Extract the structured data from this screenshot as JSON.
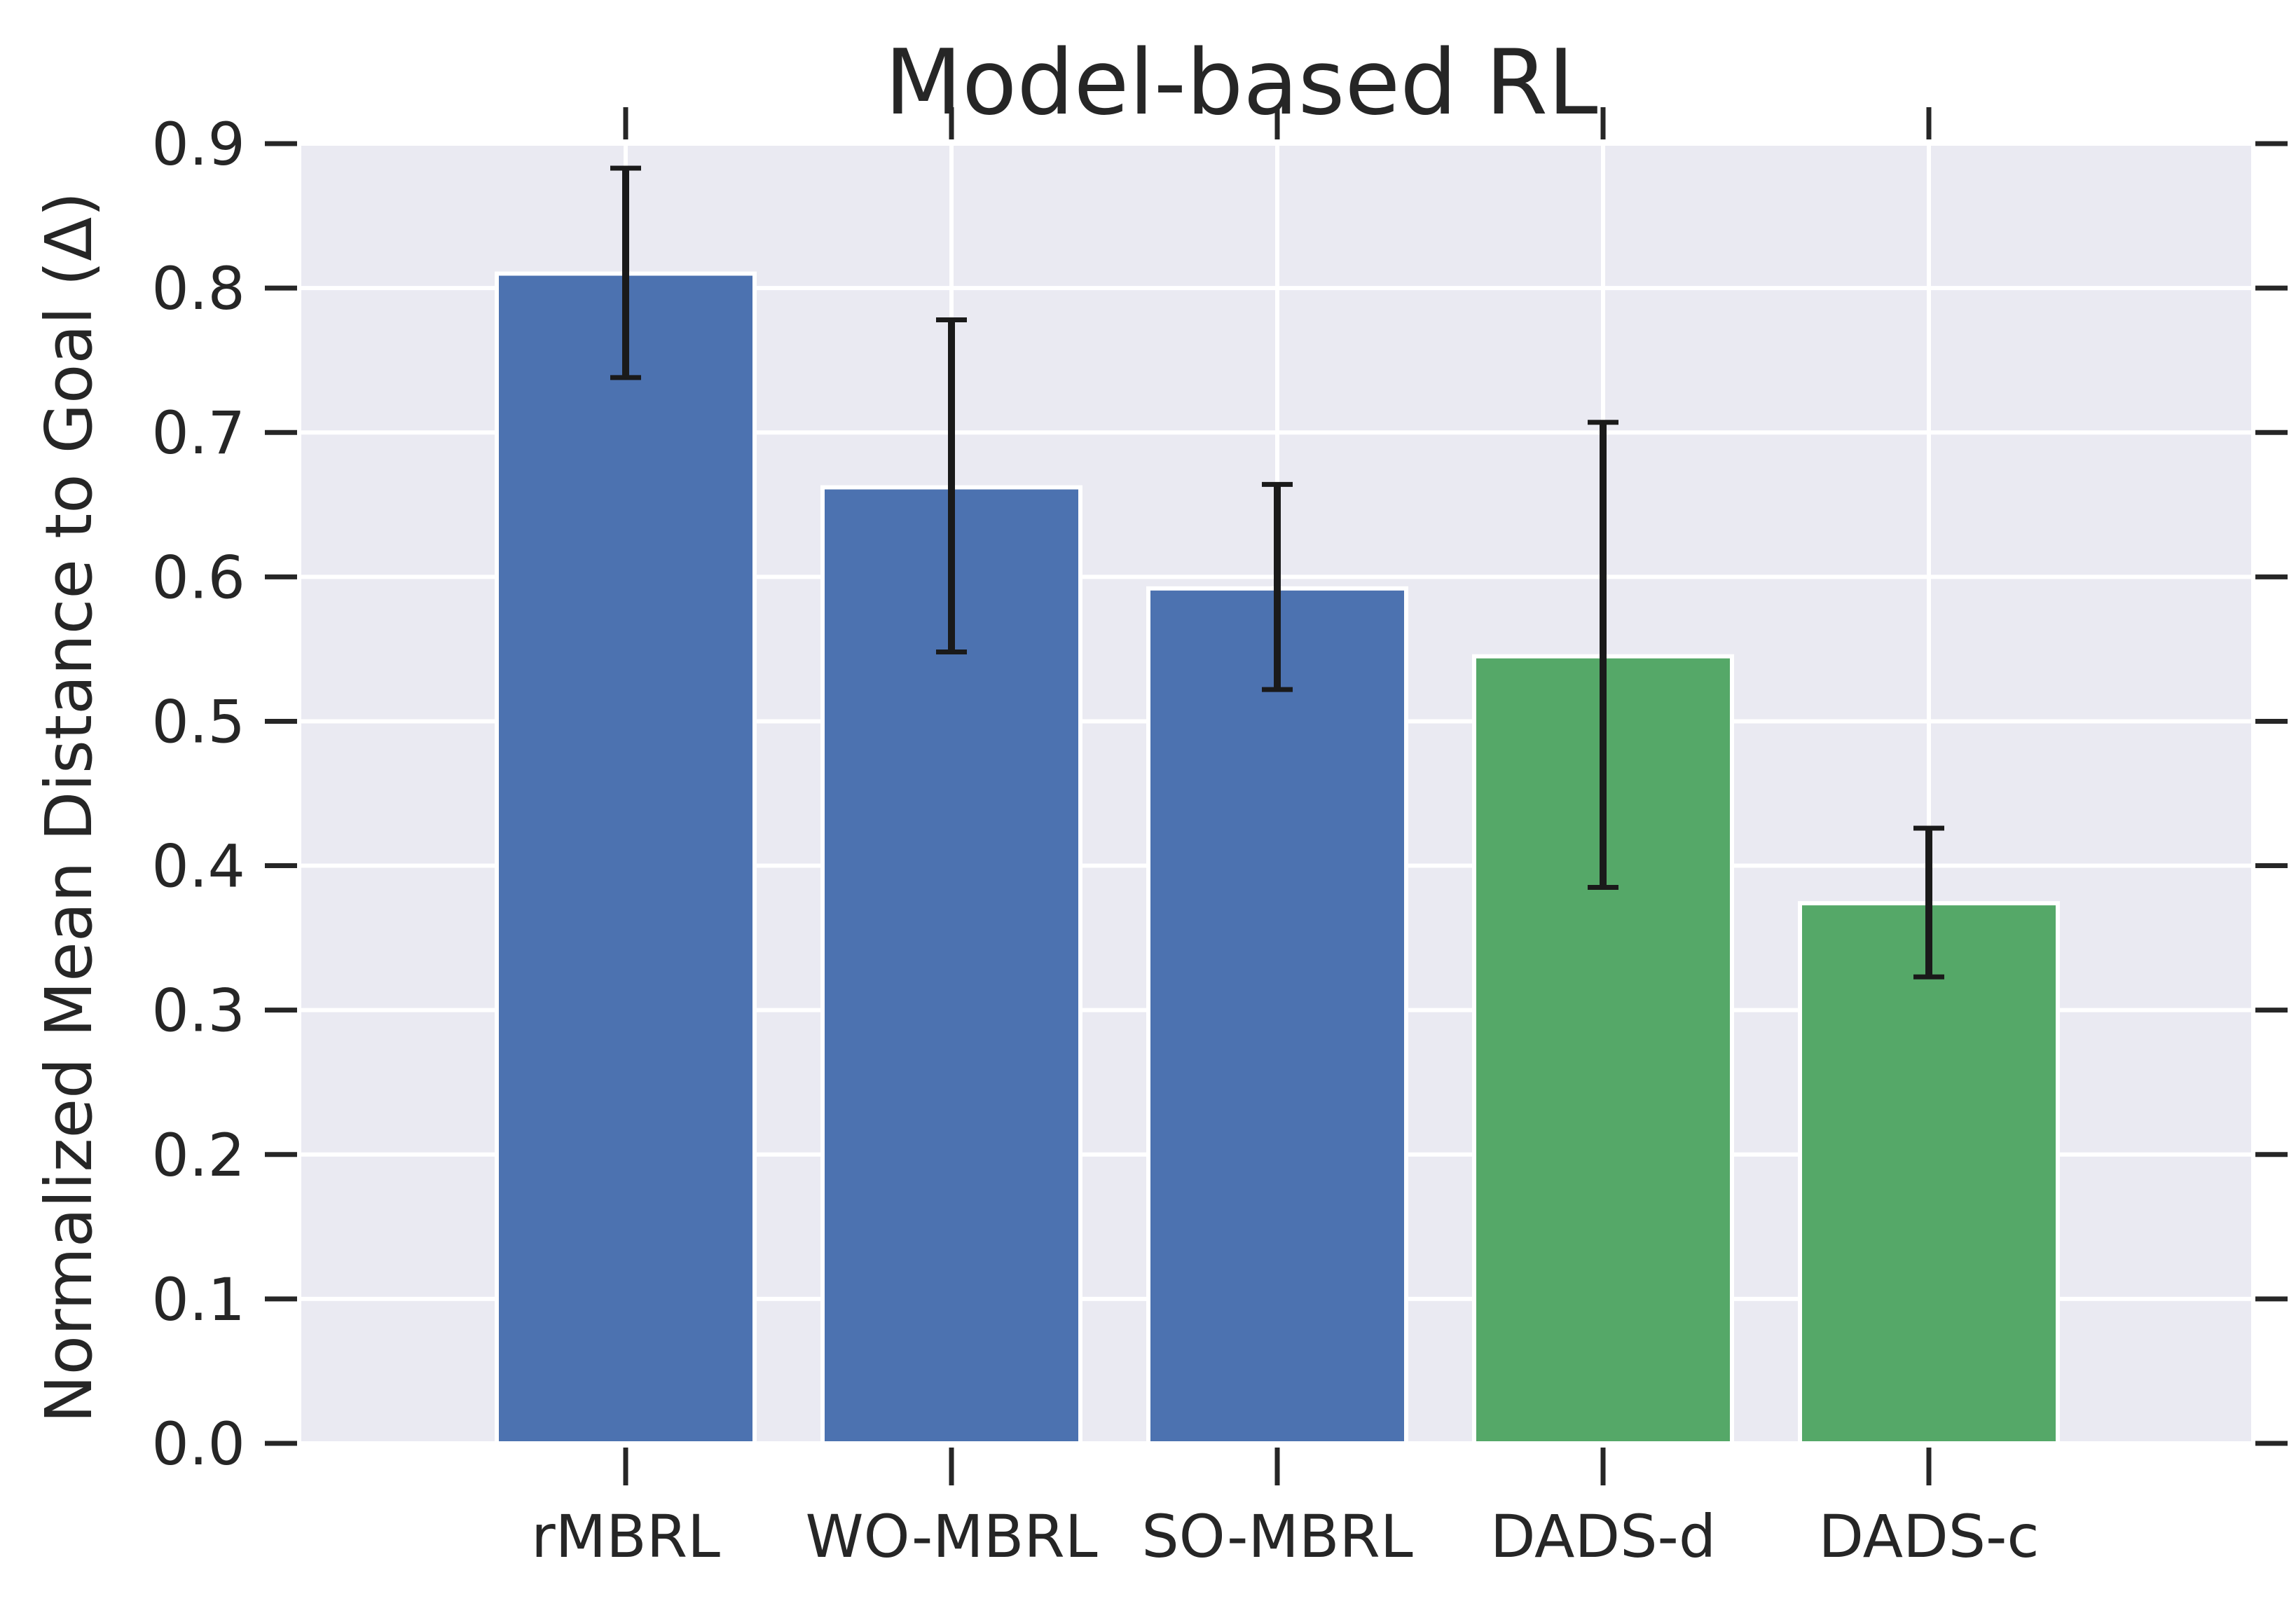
{
  "chart_data": {
    "type": "bar",
    "title": "Model-based RL",
    "ylabel": "Normalized Mean Distance to Goal (Δ)",
    "xlabel": "",
    "categories": [
      "rMBRL",
      "WO-MBRL",
      "SO-MBRL",
      "DADS-d",
      "DADS-c"
    ],
    "values": [
      0.81,
      0.662,
      0.592,
      0.545,
      0.374
    ],
    "error_low": [
      0.738,
      0.548,
      0.522,
      0.385,
      0.323
    ],
    "error_high": [
      0.883,
      0.778,
      0.664,
      0.707,
      0.426
    ],
    "bar_colors": [
      "#4c72b0",
      "#4c72b0",
      "#4c72b0",
      "#55a868",
      "#55a868"
    ],
    "ylim": [
      0.0,
      0.9
    ],
    "yticks": [
      "0.0",
      "0.1",
      "0.2",
      "0.3",
      "0.4",
      "0.5",
      "0.6",
      "0.7",
      "0.8",
      "0.9"
    ],
    "grid": true,
    "background_color": "#eaeaf2",
    "grid_color": "#ffffff",
    "error_bar_color": "#1a1a1a"
  }
}
